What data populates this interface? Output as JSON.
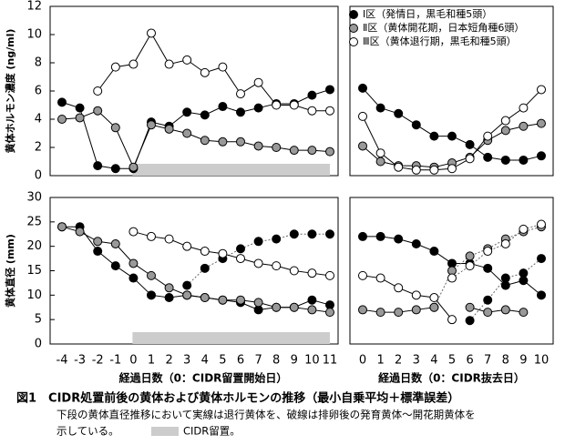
{
  "chart_data": [
    {
      "type": "line",
      "ylabel": "黄体ホルモン濃度 (ng/ml)",
      "ylim": [
        0,
        12
      ],
      "yticks": [
        0,
        2,
        4,
        6,
        8,
        10,
        12
      ],
      "shade": [
        0,
        11
      ],
      "sections": [
        {
          "x": [
            -4,
            -3,
            -2,
            -1,
            0,
            1,
            2,
            3,
            4,
            5,
            6,
            7,
            8,
            9,
            10,
            11
          ],
          "series": [
            {
              "name": "Ⅰ区（発情日，黒毛和種5頭）",
              "color": "#000000",
              "values": [
                5.2,
                4.8,
                0.7,
                0.5,
                0.5,
                3.8,
                3.5,
                4.5,
                4.3,
                4.9,
                4.5,
                4.8,
                5.1,
                5.1,
                5.7,
                6.1
              ]
            },
            {
              "name": "Ⅱ区（黄体開花期，日本短角種6頭）",
              "color": "#999999",
              "values": [
                4.0,
                4.1,
                4.6,
                3.4,
                0.6,
                3.6,
                3.3,
                3.0,
                2.5,
                2.4,
                2.4,
                2.1,
                2.0,
                1.8,
                1.8,
                1.7
              ]
            },
            {
              "name": "Ⅲ区（黄体退行期，黒毛和種5頭）",
              "color": "#ffffff",
              "values": [
                null,
                null,
                6.0,
                7.7,
                7.9,
                10.1,
                7.9,
                8.2,
                7.3,
                7.7,
                5.8,
                6.6,
                5.0,
                5.0,
                4.6,
                4.6
              ]
            }
          ]
        },
        {
          "x": [
            0,
            1,
            2,
            3,
            4,
            5,
            6,
            7,
            8,
            9,
            10
          ],
          "series": [
            {
              "color": "#000000",
              "values": [
                6.2,
                4.8,
                4.4,
                3.6,
                2.8,
                2.8,
                2.2,
                1.3,
                1.1,
                1.1,
                1.4
              ]
            },
            {
              "color": "#999999",
              "values": [
                2.1,
                1.0,
                0.7,
                0.7,
                0.6,
                0.9,
                1.3,
                2.5,
                3.2,
                3.5,
                3.7
              ]
            },
            {
              "color": "#ffffff",
              "values": [
                4.2,
                1.6,
                0.6,
                0.4,
                0.4,
                0.5,
                1.2,
                2.8,
                3.9,
                4.8,
                6.1
              ]
            }
          ]
        }
      ]
    },
    {
      "type": "line",
      "ylabel": "黄体直径 (mm)",
      "ylim": [
        0,
        30
      ],
      "yticks": [
        0,
        5,
        10,
        15,
        20,
        25,
        30
      ],
      "shade": [
        0,
        11
      ],
      "sections": [
        {
          "x": [
            -4,
            -3,
            -2,
            -1,
            0,
            1,
            2,
            3,
            4,
            5,
            6,
            7,
            8,
            9,
            10,
            11
          ],
          "xlabel": "経過日数（0：CIDR留置開始日）",
          "series": [
            {
              "color": "#000000",
              "values": [
                24,
                24,
                19,
                16,
                13.5,
                10,
                9.5,
                10,
                9.5,
                9,
                8.5,
                7,
                7.5,
                7.5,
                9,
                8
              ],
              "values_dashed": [
                null,
                null,
                null,
                null,
                null,
                null,
                null,
                12,
                15.5,
                17.5,
                19.5,
                21,
                21.5,
                22.5,
                22.5,
                22.5
              ]
            },
            {
              "color": "#999999",
              "values": [
                24,
                23,
                21,
                20.5,
                16.5,
                14,
                11.5,
                10,
                9.5,
                9,
                9,
                8.5,
                7.5,
                7.5,
                7,
                6.5
              ]
            },
            {
              "color": "#ffffff",
              "values": [
                null,
                null,
                null,
                null,
                23,
                22,
                21.5,
                20,
                19,
                18.5,
                17.5,
                16.5,
                16,
                15,
                14.5,
                14
              ]
            }
          ]
        },
        {
          "x": [
            0,
            1,
            2,
            3,
            4,
            5,
            6,
            7,
            8,
            9,
            10
          ],
          "xlabel": "経過日数（0：CIDR抜去日）",
          "series": [
            {
              "color": "#000000",
              "values": [
                22,
                22,
                21.5,
                20.5,
                19,
                16.5,
                16.5,
                15.5,
                12,
                13,
                10
              ],
              "values_dashed": [
                null,
                null,
                null,
                null,
                null,
                null,
                4.8,
                9,
                13.5,
                14.5,
                17.5
              ]
            },
            {
              "color": "#999999",
              "values": [
                7,
                6.5,
                6.5,
                7,
                7.5,
                null,
                7.5,
                6.5,
                7,
                6.5,
                null
              ],
              "values_dashed": [
                null,
                null,
                null,
                null,
                7.5,
                15,
                18,
                19.5,
                21.5,
                23,
                24
              ]
            },
            {
              "color": "#ffffff",
              "values": [
                14,
                13.5,
                11.5,
                10,
                9.5,
                5,
                null,
                null,
                null,
                null,
                null
              ],
              "values_dashed": [
                null,
                null,
                null,
                null,
                null,
                13.5,
                16,
                19,
                20.5,
                23.5,
                24.5
              ]
            }
          ]
        }
      ]
    }
  ],
  "caption": {
    "title": "図1　CIDR処置前後の黄体および黄体ホルモンの推移（最小自乗平均＋標準誤差）",
    "note": [
      "下段の黄体直径推移において実線は退行黄体を、破線は排卵後の発育黄体～開花期黄体を",
      "示している。"
    ],
    "shade_label": "CIDR留置。"
  }
}
